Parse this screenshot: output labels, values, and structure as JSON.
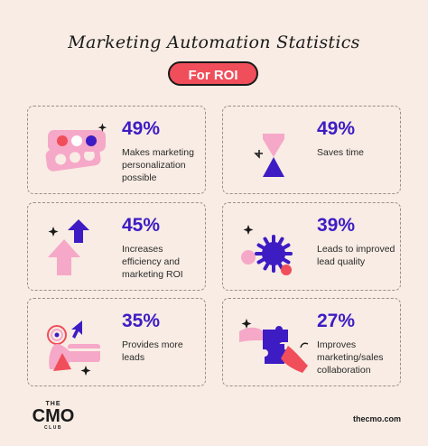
{
  "title": "Marketing Automation Statistics",
  "subtitle": "For ROI",
  "stats": [
    {
      "value": "49%",
      "text": "Makes marketing personalization possible",
      "icon": "color-swatch-icon"
    },
    {
      "value": "49%",
      "text": "Saves time",
      "icon": "hourglass-icon"
    },
    {
      "value": "45%",
      "text": "Increases efficiency and marketing ROI",
      "icon": "up-arrows-icon"
    },
    {
      "value": "39%",
      "text": "Leads to improved lead quality",
      "icon": "burst-icon"
    },
    {
      "value": "35%",
      "text": "Provides more leads",
      "icon": "cursor-card-icon"
    },
    {
      "value": "27%",
      "text": "Improves marketing/sales collaboration",
      "icon": "puzzle-hands-icon"
    }
  ],
  "logo": {
    "top": "THE",
    "main": "CMO",
    "bottom": "CLUB"
  },
  "website": "thecmo.com",
  "colors": {
    "accent": "#3d1cc4",
    "coral": "#f04e5a",
    "pink": "#f6a8c8",
    "background": "#f8ece4"
  }
}
